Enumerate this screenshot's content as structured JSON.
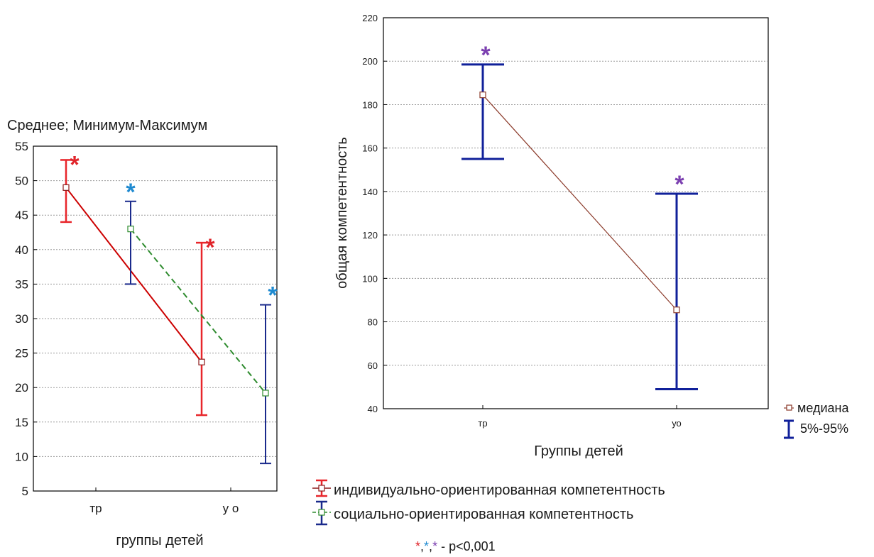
{
  "chart_data": [
    {
      "type": "line",
      "title": "Среднее; Минимум-Максимум",
      "xlabel": "группы детей",
      "ylabel": "",
      "categories": [
        "тр",
        "у о"
      ],
      "ylim": [
        5,
        55
      ],
      "yticks": [
        5,
        10,
        15,
        20,
        25,
        30,
        35,
        40,
        45,
        50,
        55
      ],
      "grid": true,
      "legend_position": "bottom-right",
      "series": [
        {
          "name": "индивидуально-ориентированная компетентность",
          "color": "#cc0000",
          "error_color": "#e8262b",
          "line_style": "solid",
          "mean": [
            49,
            23.7
          ],
          "min": [
            44,
            16
          ],
          "max": [
            53,
            41
          ],
          "significance_marker": "*"
        },
        {
          "name": "социально-ориентированная компетентность",
          "color": "#2e8b2e",
          "error_color": "#1a2a8c",
          "line_style": "dashed",
          "mean": [
            43,
            19.2
          ],
          "min": [
            35,
            9
          ],
          "max": [
            47,
            32
          ],
          "significance_marker": "*",
          "marker_color": "#1f8ad0"
        }
      ]
    },
    {
      "type": "line",
      "title": "",
      "xlabel": "Группы детей",
      "ylabel": "общая компетентность",
      "categories": [
        "тр",
        "уо"
      ],
      "ylim": [
        40,
        220
      ],
      "yticks": [
        40,
        60,
        80,
        100,
        120,
        140,
        160,
        180,
        200,
        220
      ],
      "grid": true,
      "legend_position": "bottom-right",
      "legend": [
        "медиана",
        "5%-95%"
      ],
      "series": [
        {
          "name": "медиана",
          "color": "#8b3a2a",
          "error_color": "#10209a",
          "median": [
            184.5,
            85.5
          ],
          "p5": [
            155,
            49
          ],
          "p95": [
            198.5,
            139
          ],
          "significance_marker": "*",
          "marker_color": "#7b3fb0"
        }
      ]
    }
  ],
  "significance_note": {
    "stars": [
      "*",
      "*",
      "*"
    ],
    "star_colors": [
      "#e0242a",
      "#1f8ad0",
      "#7b3fb0"
    ],
    "text": " - p<0,001"
  }
}
